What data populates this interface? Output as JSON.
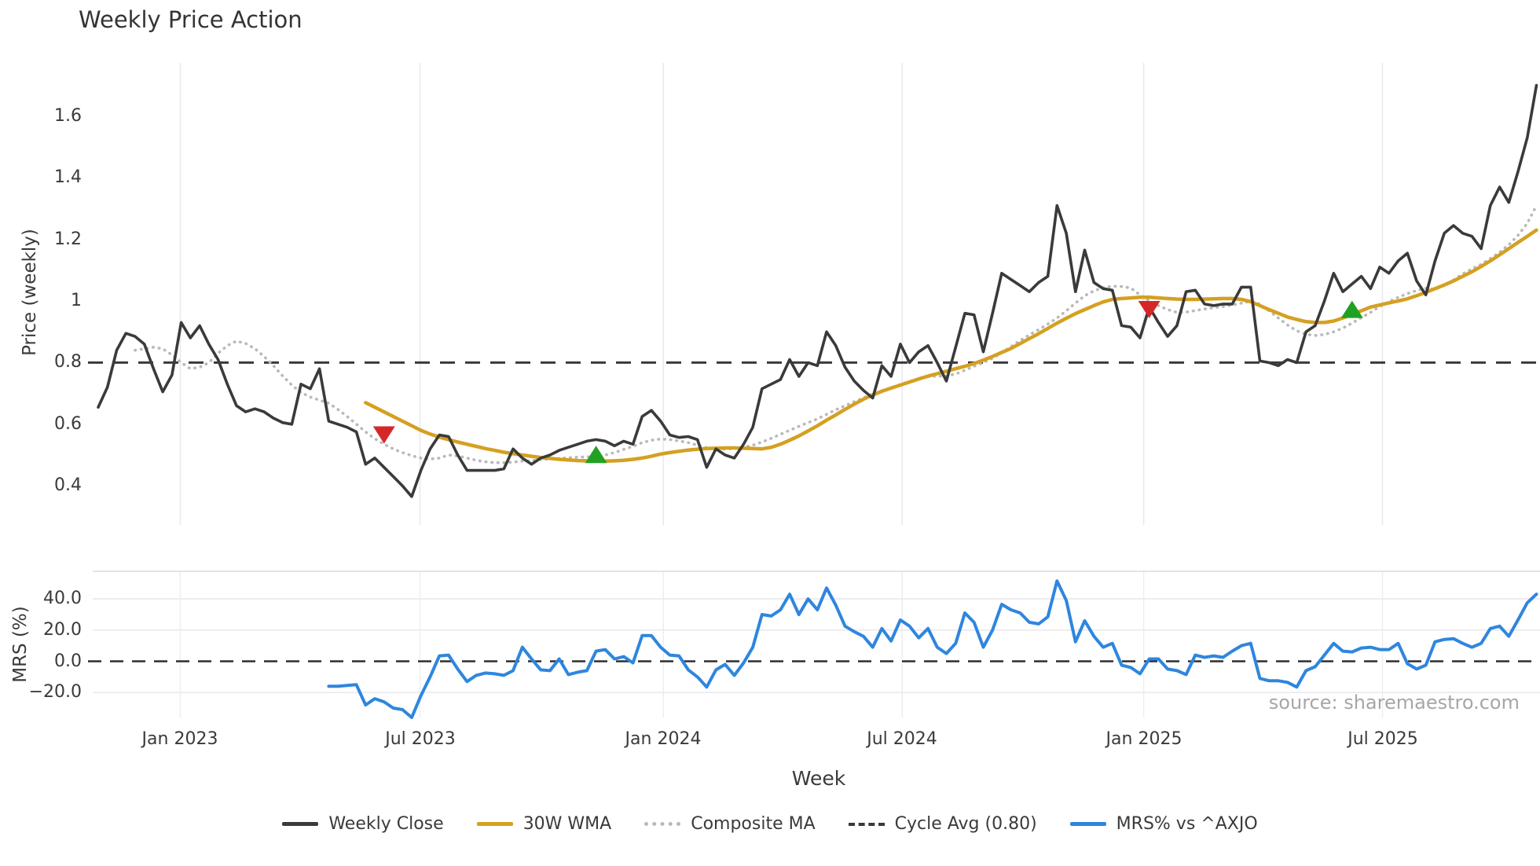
{
  "title": "Weekly Price Action",
  "source": "source: sharemaestro.com",
  "axes": {
    "price_label": "Price (weekly)",
    "mrs_label": "MRS (%)",
    "x_label": "Week",
    "price_ticks": [
      0.4,
      0.6,
      0.8,
      1,
      1.2,
      1.4,
      1.6
    ],
    "price_tick_labels": [
      "0.4",
      "0.6",
      "0.8",
      "1",
      "1.2",
      "1.4",
      "1.6"
    ],
    "mrs_ticks": [
      -20,
      0,
      20,
      40
    ],
    "mrs_tick_labels": [
      "−20.0",
      "0.0",
      "20.0",
      "40.0"
    ],
    "x_ticks_weeks": [
      8.9,
      34.9,
      61.3,
      87.2,
      113.4,
      139.3
    ],
    "x_tick_labels": [
      "Jan 2023",
      "Jul 2023",
      "Jan 2024",
      "Jul 2024",
      "Jan 2025",
      "Jul 2025"
    ]
  },
  "legend": [
    {
      "label": "Weekly Close",
      "style": "solid",
      "color": "#3a3a3a"
    },
    {
      "label": "30W WMA",
      "style": "solid",
      "color": "#d5a021"
    },
    {
      "label": "Composite MA",
      "style": "dotted",
      "color": "#b9b9b9"
    },
    {
      "label": "Cycle Avg (0.80)",
      "style": "dashed",
      "color": "#3a3a3a"
    },
    {
      "label": "MRS% vs ^AXJO",
      "style": "solid",
      "color": "#2e86de"
    }
  ],
  "chart_data": [
    {
      "type": "line",
      "panel": "price",
      "title": "Weekly Price Action",
      "ylabel": "Price (weekly)",
      "xlabel": "Week",
      "x_unit": "week_index_from_2022-11",
      "x_range": [
        0,
        156.4
      ],
      "ylim": [
        0.29,
        1.77
      ],
      "grid": "vertical-only",
      "cycle_avg_line": 0.8,
      "series": [
        {
          "name": "Weekly Close",
          "color": "#3a3a3a",
          "dash": "solid",
          "start_week": 0,
          "values": [
            0.655,
            0.72,
            0.84,
            0.895,
            0.885,
            0.86,
            0.78,
            0.705,
            0.76,
            0.93,
            0.88,
            0.92,
            0.86,
            0.81,
            0.73,
            0.66,
            0.64,
            0.65,
            0.64,
            0.62,
            0.605,
            0.6,
            0.73,
            0.715,
            0.78,
            0.61,
            0.6,
            0.59,
            0.575,
            0.47,
            0.49,
            0.46,
            0.43,
            0.4,
            0.365,
            0.45,
            0.52,
            0.565,
            0.56,
            0.5,
            0.45,
            0.45,
            0.45,
            0.45,
            0.455,
            0.52,
            0.49,
            0.47,
            0.49,
            0.5,
            0.515,
            0.525,
            0.535,
            0.545,
            0.55,
            0.545,
            0.53,
            0.545,
            0.535,
            0.625,
            0.645,
            0.61,
            0.565,
            0.557,
            0.56,
            0.55,
            0.46,
            0.52,
            0.5,
            0.49,
            0.535,
            0.59,
            0.715,
            0.73,
            0.745,
            0.81,
            0.755,
            0.8,
            0.79,
            0.9,
            0.855,
            0.785,
            0.74,
            0.71,
            0.685,
            0.79,
            0.755,
            0.86,
            0.8,
            0.835,
            0.855,
            0.8,
            0.74,
            0.85,
            0.96,
            0.955,
            0.835,
            0.96,
            1.09,
            1.07,
            1.05,
            1.03,
            1.06,
            1.08,
            1.31,
            1.22,
            1.03,
            1.165,
            1.06,
            1.04,
            1.035,
            0.92,
            0.915,
            0.88,
            0.98,
            0.93,
            0.885,
            0.92,
            1.03,
            1.035,
            0.99,
            0.985,
            0.99,
            0.99,
            1.045,
            1.045,
            0.805,
            0.8,
            0.79,
            0.81,
            0.8,
            0.9,
            0.92,
            1.0,
            1.09,
            1.03,
            1.055,
            1.08,
            1.04,
            1.11,
            1.09,
            1.13,
            1.155,
            1.065,
            1.02,
            1.13,
            1.22,
            1.245,
            1.22,
            1.21,
            1.17,
            1.31,
            1.37,
            1.32,
            1.42,
            1.53,
            1.7
          ]
        },
        {
          "name": "30W WMA",
          "color": "#d5a021",
          "dash": "solid",
          "start_week": 29,
          "values": [
            0.67,
            0.655,
            0.64,
            0.625,
            0.61,
            0.595,
            0.58,
            0.568,
            0.558,
            0.55,
            0.542,
            0.535,
            0.528,
            0.521,
            0.515,
            0.509,
            0.504,
            0.5,
            0.496,
            0.492,
            0.489,
            0.486,
            0.484,
            0.482,
            0.481,
            0.48,
            0.48,
            0.481,
            0.483,
            0.486,
            0.49,
            0.496,
            0.503,
            0.508,
            0.512,
            0.516,
            0.519,
            0.521,
            0.522,
            0.523,
            0.523,
            0.522,
            0.521,
            0.52,
            0.525,
            0.535,
            0.548,
            0.562,
            0.578,
            0.595,
            0.613,
            0.63,
            0.648,
            0.665,
            0.681,
            0.695,
            0.707,
            0.717,
            0.727,
            0.737,
            0.747,
            0.756,
            0.764,
            0.772,
            0.78,
            0.788,
            0.797,
            0.808,
            0.82,
            0.833,
            0.846,
            0.862,
            0.878,
            0.894,
            0.911,
            0.928,
            0.944,
            0.959,
            0.972,
            0.985,
            0.997,
            1.005,
            1.008,
            1.01,
            1.012,
            1.012,
            1.01,
            1.008,
            1.006,
            1.005,
            1.005,
            1.006,
            1.007,
            1.008,
            1.008,
            1.005,
            0.998,
            0.985,
            0.972,
            0.96,
            0.948,
            0.94,
            0.933,
            0.93,
            0.93,
            0.935,
            0.945,
            0.957,
            0.968,
            0.98,
            0.987,
            0.994,
            1.0,
            1.007,
            1.017,
            1.028,
            1.04,
            1.052,
            1.065,
            1.08,
            1.095,
            1.112,
            1.13,
            1.15,
            1.17,
            1.19,
            1.21,
            1.23
          ]
        },
        {
          "name": "Composite MA",
          "color": "#b9b9b9",
          "dash": "dotted",
          "start_week": 4,
          "values": [
            0.84,
            0.845,
            0.85,
            0.845,
            0.825,
            0.8,
            0.78,
            0.785,
            0.8,
            0.83,
            0.855,
            0.87,
            0.862,
            0.845,
            0.82,
            0.79,
            0.757,
            0.727,
            0.703,
            0.688,
            0.678,
            0.668,
            0.648,
            0.625,
            0.6,
            0.575,
            0.553,
            0.535,
            0.52,
            0.508,
            0.498,
            0.49,
            0.487,
            0.49,
            0.5,
            0.497,
            0.49,
            0.483,
            0.478,
            0.475,
            0.475,
            0.477,
            0.48,
            0.482,
            0.485,
            0.487,
            0.489,
            0.491,
            0.493,
            0.494,
            0.496,
            0.5,
            0.508,
            0.518,
            0.528,
            0.54,
            0.548,
            0.552,
            0.55,
            0.546,
            0.54,
            0.532,
            0.524,
            0.52,
            0.519,
            0.521,
            0.525,
            0.532,
            0.542,
            0.554,
            0.567,
            0.58,
            0.593,
            0.605,
            0.617,
            0.632,
            0.647,
            0.66,
            0.673,
            0.686,
            0.698,
            0.709,
            0.719,
            0.729,
            0.739,
            0.748,
            0.754,
            0.756,
            0.756,
            0.763,
            0.775,
            0.788,
            0.8,
            0.814,
            0.832,
            0.852,
            0.872,
            0.89,
            0.907,
            0.925,
            0.945,
            0.968,
            0.993,
            1.017,
            1.033,
            1.043,
            1.048,
            1.047,
            1.042,
            1.02,
            1.0,
            0.985,
            0.972,
            0.963,
            0.964,
            0.969,
            0.974,
            0.978,
            0.982,
            0.987,
            0.993,
            0.999,
            0.99,
            0.968,
            0.945,
            0.922,
            0.903,
            0.892,
            0.888,
            0.891,
            0.9,
            0.912,
            0.928,
            0.946,
            0.963,
            0.982,
            0.998,
            1.012,
            1.024,
            1.034,
            1.041,
            1.038,
            1.05,
            1.068,
            1.088,
            1.104,
            1.119,
            1.138,
            1.158,
            1.183,
            1.213,
            1.252,
            1.31
          ]
        }
      ],
      "markers": [
        {
          "type": "sell",
          "shape": "triangle-down",
          "color": "#d62728",
          "week": 31,
          "price": 0.565
        },
        {
          "type": "buy",
          "shape": "triangle-up",
          "color": "#21a121",
          "week": 54,
          "price": 0.502
        },
        {
          "type": "sell",
          "shape": "triangle-down",
          "color": "#d62728",
          "week": 114,
          "price": 0.972
        },
        {
          "type": "buy",
          "shape": "triangle-up",
          "color": "#21a121",
          "week": 136,
          "price": 0.973
        }
      ]
    },
    {
      "type": "line",
      "panel": "mrs",
      "ylabel": "MRS (%)",
      "ylim": [
        -38,
        58
      ],
      "zero_line": 0,
      "grid": "both",
      "series": [
        {
          "name": "MRS% vs ^AXJO",
          "color": "#2e86de",
          "dash": "solid",
          "start_week": 25,
          "values": [
            -16,
            -16,
            -15.5,
            -15,
            -28,
            -24,
            -26,
            -30,
            -31,
            -36,
            -22,
            -10,
            3.5,
            4,
            -5,
            -13,
            -9,
            -7.5,
            -8,
            -9,
            -6,
            9,
            1.5,
            -5.5,
            -6,
            1.5,
            -8.5,
            -7,
            -6,
            6.5,
            7.5,
            1.5,
            3,
            -1,
            16.5,
            16.5,
            9,
            4,
            3.5,
            -5.5,
            -10,
            -16.5,
            -5.5,
            -2,
            -9,
            -1,
            9,
            30,
            29,
            33,
            43,
            30,
            40,
            33,
            47,
            36,
            22.5,
            19,
            16,
            9,
            21,
            13,
            26.5,
            22.5,
            15,
            21,
            9,
            5,
            11.5,
            31,
            25,
            9,
            20,
            36.5,
            33,
            31,
            25,
            24,
            28.5,
            51.5,
            39,
            12.5,
            26,
            16,
            9,
            11.5,
            -2.5,
            -4,
            -8,
            1.5,
            1.5,
            -5,
            -6,
            -8.5,
            4,
            2.5,
            3.5,
            2.5,
            6.5,
            10,
            11.5,
            -11,
            -12.5,
            -12.5,
            -13.5,
            -16.5,
            -6,
            -3.5,
            4,
            11.5,
            6.5,
            6,
            8.5,
            9,
            7.5,
            7.5,
            11.5,
            -1.5,
            -5,
            -2.5,
            12.5,
            14,
            14.5,
            11.5,
            9,
            11.5,
            21,
            22.5,
            16,
            26.5,
            37.5,
            43
          ]
        }
      ]
    }
  ]
}
